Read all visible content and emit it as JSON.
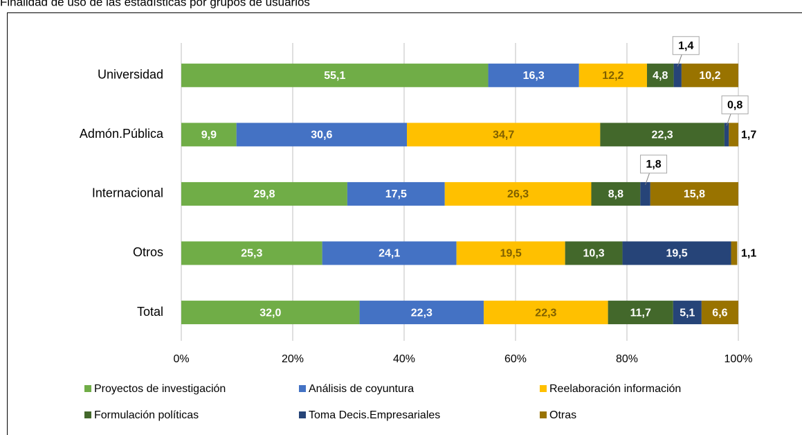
{
  "chart_data": {
    "type": "stacked_bar_horizontal",
    "title": "Finalidad de uso de las estadísticas por grupos de usuarios",
    "categories": [
      "Universidad",
      "Admón.Pública",
      "Internacional",
      "Otros",
      "Total"
    ],
    "series": [
      {
        "name": "Proyectos de investigación",
        "color": "#70ad47",
        "label_color": "#ffffff",
        "values": [
          55.1,
          9.9,
          29.8,
          25.3,
          32.0
        ],
        "value_labels": [
          "55,1",
          "9,9",
          "29,8",
          "25,3",
          "32,0"
        ]
      },
      {
        "name": "Análisis de coyuntura",
        "color": "#4472c4",
        "label_color": "#ffffff",
        "values": [
          16.3,
          30.6,
          17.5,
          24.1,
          22.3
        ],
        "value_labels": [
          "16,3",
          "30,6",
          "17,5",
          "24,1",
          "22,3"
        ]
      },
      {
        "name": "Reelaboración información",
        "color": "#ffc000",
        "label_color": "#7f6000",
        "values": [
          12.2,
          34.7,
          26.3,
          19.5,
          22.3
        ],
        "value_labels": [
          "12,2",
          "34,7",
          "26,3",
          "19,5",
          "22,3"
        ]
      },
      {
        "name": "Formulación políticas",
        "color": "#43682b",
        "label_color": "#ffffff",
        "values": [
          4.8,
          22.3,
          8.8,
          10.3,
          11.7
        ],
        "value_labels": [
          "4,8",
          "22,3",
          "8,8",
          "10,3",
          "11,7"
        ]
      },
      {
        "name": "Toma Decis.Empresariales",
        "color": "#264478",
        "label_color": "#ffffff",
        "values": [
          1.4,
          0.8,
          1.8,
          19.5,
          5.1
        ],
        "value_labels": [
          "1,4",
          "0,8",
          "1,8",
          "19,5",
          "5,1"
        ]
      },
      {
        "name": "Otras",
        "color": "#997300",
        "label_color": "#ffffff",
        "values": [
          10.2,
          1.7,
          15.8,
          1.1,
          6.6
        ],
        "value_labels": [
          "10,2",
          "1,7",
          "15,8",
          "1,1",
          "6,6"
        ]
      }
    ],
    "xlim": [
      0,
      100
    ],
    "xticks": [
      {
        "value": 0,
        "label": "0%"
      },
      {
        "value": 20,
        "label": "20%"
      },
      {
        "value": 40,
        "label": "40%"
      },
      {
        "value": 60,
        "label": "60%"
      },
      {
        "value": 80,
        "label": "80%"
      },
      {
        "value": 100,
        "label": "100%"
      }
    ],
    "grid": true,
    "legend": "bottom"
  }
}
